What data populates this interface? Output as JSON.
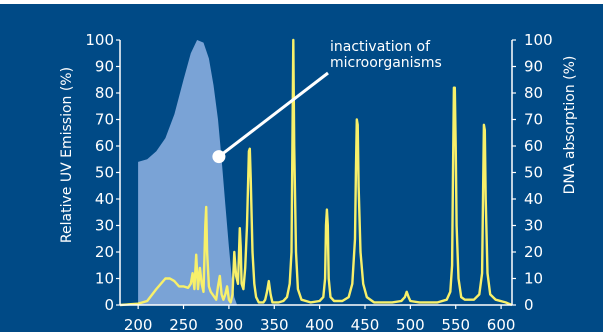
{
  "chart_data": {
    "type": "line",
    "xlabel": "",
    "ylabel_left": "Relative UV Emission (%)",
    "ylabel_right": "DNA absorption (%)",
    "xlim": [
      180,
      612
    ],
    "ylim": [
      0,
      100
    ],
    "x_ticks": [
      200,
      250,
      300,
      350,
      400,
      450,
      500,
      550,
      600
    ],
    "y_ticks": [
      0,
      10,
      20,
      30,
      40,
      50,
      60,
      70,
      80,
      90,
      100
    ],
    "annotation": {
      "lines": [
        "inactivation of",
        "microorganisms"
      ],
      "target": [
        289,
        56
      ]
    },
    "series": [
      {
        "color": "#7aa3d6",
        "fill": true,
        "points": [
          [
            200,
            0
          ],
          [
            200,
            54
          ],
          [
            210,
            55
          ],
          [
            220,
            58
          ],
          [
            230,
            63
          ],
          [
            240,
            72
          ],
          [
            250,
            85
          ],
          [
            258,
            95
          ],
          [
            265,
            100
          ],
          [
            272,
            99
          ],
          [
            278,
            93
          ],
          [
            283,
            83
          ],
          [
            288,
            70
          ],
          [
            292,
            55
          ],
          [
            296,
            38
          ],
          [
            300,
            22
          ],
          [
            303,
            11
          ],
          [
            306,
            3
          ],
          [
            309,
            0
          ]
        ]
      },
      {
        "color": "#f8f06a",
        "fill": false,
        "points": [
          [
            180,
            0
          ],
          [
            200,
            0.5
          ],
          [
            210,
            1.5
          ],
          [
            220,
            6
          ],
          [
            230,
            10
          ],
          [
            235,
            10
          ],
          [
            240,
            9
          ],
          [
            245,
            7
          ],
          [
            250,
            7
          ],
          [
            255,
            6.5
          ],
          [
            258,
            8
          ],
          [
            260,
            12
          ],
          [
            262,
            6
          ],
          [
            264,
            19
          ],
          [
            266,
            6
          ],
          [
            268,
            14
          ],
          [
            270,
            8
          ],
          [
            272,
            5
          ],
          [
            274,
            30
          ],
          [
            275,
            37
          ],
          [
            276,
            20
          ],
          [
            278,
            7
          ],
          [
            280,
            5
          ],
          [
            282,
            4
          ],
          [
            284,
            3
          ],
          [
            286,
            2
          ],
          [
            288,
            7
          ],
          [
            290,
            11
          ],
          [
            292,
            4
          ],
          [
            294,
            2
          ],
          [
            296,
            4
          ],
          [
            298,
            7
          ],
          [
            300,
            2
          ],
          [
            302,
            1
          ],
          [
            304,
            4
          ],
          [
            306,
            20
          ],
          [
            308,
            11
          ],
          [
            310,
            8
          ],
          [
            312,
            29
          ],
          [
            313,
            22
          ],
          [
            314,
            8
          ],
          [
            316,
            6
          ],
          [
            318,
            14
          ],
          [
            320,
            30
          ],
          [
            322,
            58
          ],
          [
            323,
            59
          ],
          [
            324,
            48
          ],
          [
            326,
            20
          ],
          [
            328,
            8
          ],
          [
            330,
            3
          ],
          [
            333,
            1
          ],
          [
            338,
            1
          ],
          [
            340,
            2
          ],
          [
            342,
            5
          ],
          [
            344,
            9
          ],
          [
            346,
            4
          ],
          [
            348,
            1
          ],
          [
            355,
            1
          ],
          [
            360,
            1.5
          ],
          [
            364,
            3
          ],
          [
            367,
            8
          ],
          [
            369,
            20
          ],
          [
            370,
            60
          ],
          [
            371,
            100
          ],
          [
            372,
            60
          ],
          [
            374,
            20
          ],
          [
            376,
            6
          ],
          [
            380,
            2
          ],
          [
            390,
            1
          ],
          [
            400,
            1.5
          ],
          [
            404,
            3
          ],
          [
            406,
            10
          ],
          [
            407,
            30
          ],
          [
            408,
            36
          ],
          [
            409,
            30
          ],
          [
            410,
            10
          ],
          [
            412,
            3
          ],
          [
            416,
            1.5
          ],
          [
            425,
            1.5
          ],
          [
            432,
            3
          ],
          [
            436,
            8
          ],
          [
            439,
            25
          ],
          [
            440,
            50
          ],
          [
            441,
            70
          ],
          [
            442,
            68
          ],
          [
            443,
            45
          ],
          [
            445,
            20
          ],
          [
            448,
            8
          ],
          [
            452,
            3
          ],
          [
            460,
            1
          ],
          [
            480,
            1
          ],
          [
            490,
            1.5
          ],
          [
            494,
            3
          ],
          [
            496,
            5
          ],
          [
            498,
            3
          ],
          [
            500,
            1.5
          ],
          [
            510,
            1
          ],
          [
            530,
            1
          ],
          [
            540,
            2
          ],
          [
            544,
            5
          ],
          [
            546,
            15
          ],
          [
            547,
            50
          ],
          [
            548,
            82
          ],
          [
            549,
            82
          ],
          [
            550,
            60
          ],
          [
            551,
            30
          ],
          [
            553,
            10
          ],
          [
            556,
            3
          ],
          [
            560,
            2
          ],
          [
            570,
            2
          ],
          [
            576,
            4
          ],
          [
            579,
            12
          ],
          [
            580,
            40
          ],
          [
            581,
            68
          ],
          [
            582,
            66
          ],
          [
            583,
            40
          ],
          [
            585,
            12
          ],
          [
            588,
            4
          ],
          [
            594,
            2
          ],
          [
            605,
            1
          ],
          [
            612,
            0
          ]
        ]
      }
    ]
  }
}
